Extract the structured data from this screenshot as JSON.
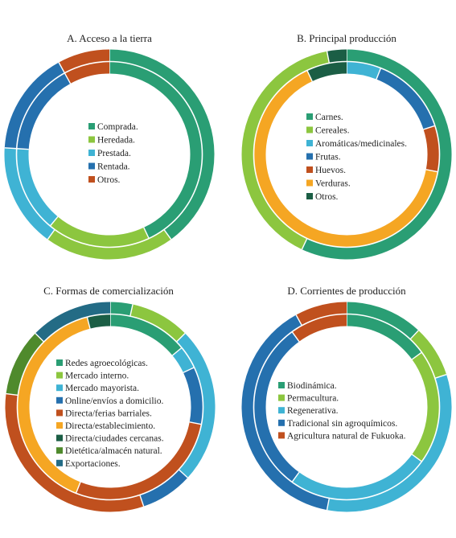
{
  "chart_data": [
    {
      "type": "donut",
      "title": "A. Acceso a la tierra",
      "categories": [
        "Comprada.",
        "Heredada.",
        "Prestada.",
        "Rentada.",
        "Otros."
      ],
      "colors": [
        "#2a9e74",
        "#8cc63f",
        "#3fb3d4",
        "#2570ae",
        "#c0501e"
      ],
      "series": [
        {
          "ring": "inner",
          "values": [
            43,
            18,
            15,
            16,
            8
          ]
        },
        {
          "ring": "outer",
          "values": [
            40,
            20,
            16,
            16,
            8
          ]
        }
      ]
    },
    {
      "type": "donut",
      "title": "B. Principal  producción",
      "categories": [
        "Carnes.",
        "Cereales.",
        "Aromáticas/medicinales.",
        "Frutas.",
        "Huevos.",
        "Verduras.",
        "Otros."
      ],
      "colors": [
        "#2a9e74",
        "#8cc63f",
        "#3fb3d4",
        "#2570ae",
        "#c0501e",
        "#f5a623",
        "#1b5e45"
      ],
      "series": [
        {
          "ring": "inner",
          "values": [
            0,
            0,
            6,
            14,
            8,
            65,
            7
          ]
        },
        {
          "ring": "outer",
          "values": [
            57,
            40,
            0,
            0,
            0,
            0,
            3
          ]
        }
      ]
    },
    {
      "type": "donut",
      "title": "C. Formas de comercialización",
      "categories": [
        "Redes agroecológicas.",
        "Mercado interno.",
        "Mercado mayorista.",
        "Online/envíos  a domicilio.",
        "Directa/ferias barriales.",
        "Directa/establecimiento.",
        "Directa/ciudades cercanas.",
        "Dietética/almacén natural.",
        "Exportaciones."
      ],
      "colors": [
        "#2a9e74",
        "#8cc63f",
        "#3fb3d4",
        "#2570ae",
        "#c0501e",
        "#f5a623",
        "#1b5e45",
        "#4f8a2c",
        "#236b85"
      ],
      "series": [
        {
          "ring": "inner",
          "values": [
            14,
            0,
            4,
            10,
            28,
            40,
            4,
            0,
            0
          ]
        },
        {
          "ring": "outer",
          "values": [
            3,
            8,
            21,
            7,
            28,
            0,
            0,
            9,
            11
          ]
        }
      ]
    },
    {
      "type": "donut",
      "title": "D. Corrientes  de producción",
      "categories": [
        "Biodinámica.",
        "Permacultura.",
        "Regenerativa.",
        "Tradicional sin agroquímicos.",
        "Agricultura natural de Fukuoka."
      ],
      "colors": [
        "#2a9e74",
        "#8cc63f",
        "#3fb3d4",
        "#2570ae",
        "#c0501e"
      ],
      "series": [
        {
          "ring": "inner",
          "values": [
            15,
            20,
            25,
            30,
            10
          ]
        },
        {
          "ring": "outer",
          "values": [
            12,
            8,
            33,
            39,
            8
          ]
        }
      ]
    }
  ]
}
